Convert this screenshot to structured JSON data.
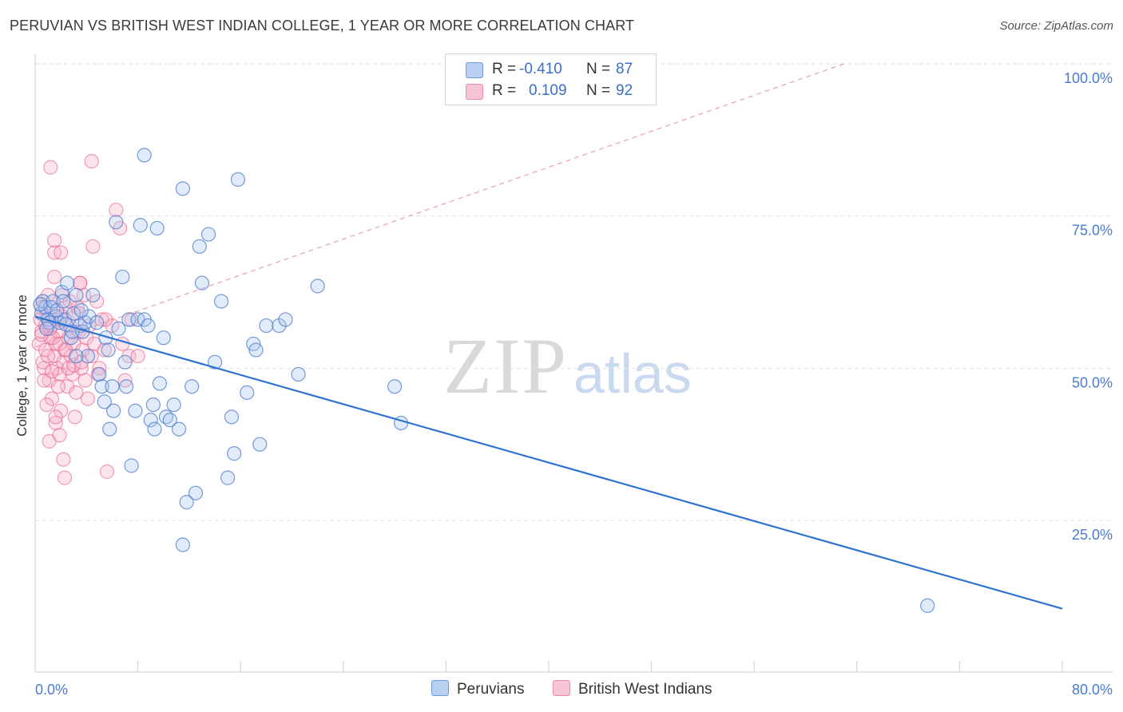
{
  "title": "PERUVIAN VS BRITISH WEST INDIAN COLLEGE, 1 YEAR OR MORE CORRELATION CHART",
  "source": "Source: ZipAtlas.com",
  "watermark": {
    "zip": "ZIP",
    "atlas": "atlas"
  },
  "colors": {
    "blue": "#4a7bd0",
    "blue_fill": "#a9c6ef",
    "pink": "#e8608a",
    "pink_fill": "#f5b3c8",
    "trend_blue": "#2f73cf",
    "trend_pink": "#e8a0b6"
  },
  "legend": {
    "rows": [
      {
        "r_label": "R =",
        "r_value": "-0.410",
        "n_label": "N =",
        "n_value": "87"
      },
      {
        "r_label": "R =",
        "r_value": "0.109",
        "n_label": "N =",
        "n_value": "92"
      }
    ]
  },
  "bottom_legend": {
    "series1": "Peruvians",
    "series2": "British West Indians"
  },
  "chart_data": {
    "type": "scatter",
    "title": "PERUVIAN VS BRITISH WEST INDIAN COLLEGE, 1 YEAR OR MORE CORRELATION CHART",
    "xlabel": "",
    "ylabel": "College, 1 year or more",
    "xlim": [
      0,
      80
    ],
    "ylim": [
      0,
      103
    ],
    "x_tick_labels": [
      "0.0%",
      "80.0%"
    ],
    "y_ticks": [
      25,
      50,
      75,
      100
    ],
    "y_tick_labels": [
      "25.0%",
      "50.0%",
      "75.0%",
      "100.0%"
    ],
    "grid": true,
    "legend_position": "top-center",
    "series": [
      {
        "name": "Peruvians",
        "R": -0.41,
        "N": 87,
        "trend": {
          "x": [
            0,
            80
          ],
          "y": [
            58.5,
            10.5
          ]
        },
        "points": [
          [
            0.5,
            59
          ],
          [
            0.6,
            61
          ],
          [
            0.8,
            60
          ],
          [
            1,
            58
          ],
          [
            1.2,
            60
          ],
          [
            1.4,
            61
          ],
          [
            1.6,
            58.5
          ],
          [
            1.9,
            57.5
          ],
          [
            2.1,
            62.5
          ],
          [
            2.3,
            58
          ],
          [
            2.5,
            64
          ],
          [
            2.8,
            55
          ],
          [
            3,
            59
          ],
          [
            3.2,
            62
          ],
          [
            3.5,
            57
          ],
          [
            3.7,
            56
          ],
          [
            3.9,
            57.5
          ],
          [
            4.2,
            58.5
          ],
          [
            4.5,
            62
          ],
          [
            4.8,
            57.5
          ],
          [
            5,
            49
          ],
          [
            5.2,
            47
          ],
          [
            5.5,
            55
          ],
          [
            5.7,
            53
          ],
          [
            6,
            47
          ],
          [
            6.3,
            74
          ],
          [
            6.5,
            56.5
          ],
          [
            6.8,
            65
          ],
          [
            7,
            51
          ],
          [
            7.3,
            58
          ],
          [
            7.5,
            34
          ],
          [
            7.8,
            43
          ],
          [
            8,
            58
          ],
          [
            8.2,
            73.5
          ],
          [
            8.5,
            58
          ],
          [
            8.8,
            57
          ],
          [
            9,
            41.5
          ],
          [
            9.2,
            44
          ],
          [
            9.5,
            73
          ],
          [
            9.7,
            47.5
          ],
          [
            10,
            55
          ],
          [
            10.2,
            42
          ],
          [
            10.5,
            41.5
          ],
          [
            10.8,
            44
          ],
          [
            11.2,
            40
          ],
          [
            11.5,
            79.5
          ],
          [
            11.8,
            28
          ],
          [
            12.2,
            47
          ],
          [
            12.5,
            29.5
          ],
          [
            12.8,
            70
          ],
          [
            13,
            64
          ],
          [
            13.5,
            72
          ],
          [
            14,
            51
          ],
          [
            14.5,
            61
          ],
          [
            15,
            32
          ],
          [
            15.3,
            42
          ],
          [
            15.5,
            36
          ],
          [
            15.8,
            81
          ],
          [
            16.5,
            46
          ],
          [
            17,
            54
          ],
          [
            17.2,
            53
          ],
          [
            17.5,
            37.5
          ],
          [
            18,
            57
          ],
          [
            19,
            57
          ],
          [
            19.5,
            58
          ],
          [
            20.5,
            49
          ],
          [
            8.5,
            85
          ],
          [
            11.5,
            21
          ],
          [
            22,
            63.5
          ],
          [
            28,
            47
          ],
          [
            28.5,
            41
          ],
          [
            69.5,
            11
          ],
          [
            2.4,
            57.2
          ],
          [
            3.6,
            59.5
          ],
          [
            1.1,
            57.5
          ],
          [
            0.9,
            56.5
          ],
          [
            4.1,
            52
          ],
          [
            6.1,
            43
          ],
          [
            5.8,
            40
          ],
          [
            7.1,
            47
          ],
          [
            9.3,
            40
          ],
          [
            3.2,
            52
          ],
          [
            2.9,
            56
          ],
          [
            0.4,
            60.5
          ],
          [
            1.7,
            59.5
          ],
          [
            2.2,
            61
          ],
          [
            5.4,
            44.5
          ]
        ]
      },
      {
        "name": "British West Indians",
        "R": 0.109,
        "N": 92,
        "trend": {
          "x": [
            0,
            63
          ],
          "y": [
            53.5,
            100
          ]
        },
        "points": [
          [
            0.3,
            54
          ],
          [
            0.4,
            58
          ],
          [
            0.5,
            56
          ],
          [
            0.6,
            61
          ],
          [
            0.7,
            50
          ],
          [
            0.8,
            53
          ],
          [
            0.9,
            59
          ],
          [
            1,
            62
          ],
          [
            1.1,
            48
          ],
          [
            1.2,
            55
          ],
          [
            1.3,
            57
          ],
          [
            1.4,
            60
          ],
          [
            1.5,
            52
          ],
          [
            1.6,
            54
          ],
          [
            1.7,
            50
          ],
          [
            1.8,
            56
          ],
          [
            1.9,
            49
          ],
          [
            2,
            58
          ],
          [
            2.1,
            62
          ],
          [
            2.2,
            51
          ],
          [
            2.3,
            53
          ],
          [
            2.4,
            60
          ],
          [
            2.5,
            47
          ],
          [
            2.6,
            55
          ],
          [
            2.7,
            57
          ],
          [
            2.8,
            52
          ],
          [
            2.9,
            49
          ],
          [
            3,
            54
          ],
          [
            3.1,
            42
          ],
          [
            3.2,
            46
          ],
          [
            3.3,
            60
          ],
          [
            3.4,
            56
          ],
          [
            3.5,
            64
          ],
          [
            3.6,
            50
          ],
          [
            3.7,
            53
          ],
          [
            3.8,
            62
          ],
          [
            3.9,
            48
          ],
          [
            4,
            55
          ],
          [
            4.2,
            57
          ],
          [
            4.4,
            52
          ],
          [
            4.6,
            54
          ],
          [
            4.8,
            61
          ],
          [
            5,
            50
          ],
          [
            5.2,
            58
          ],
          [
            5.4,
            53
          ],
          [
            5.6,
            33
          ],
          [
            6,
            57
          ],
          [
            6.3,
            76
          ],
          [
            6.6,
            73
          ],
          [
            7,
            48
          ],
          [
            7.3,
            52
          ],
          [
            1.2,
            83
          ],
          [
            4.4,
            84
          ],
          [
            1.5,
            71
          ],
          [
            1.5,
            69
          ],
          [
            2,
            69
          ],
          [
            3.5,
            64
          ],
          [
            1.5,
            65
          ],
          [
            1.3,
            45
          ],
          [
            1.6,
            41
          ],
          [
            2,
            43
          ],
          [
            1.1,
            38
          ],
          [
            1.9,
            39
          ],
          [
            2.2,
            35
          ],
          [
            2.3,
            32
          ],
          [
            4.5,
            70
          ],
          [
            7.5,
            58
          ],
          [
            8,
            52
          ],
          [
            6.8,
            54
          ],
          [
            5.5,
            58
          ],
          [
            0.5,
            60
          ],
          [
            0.8,
            57
          ],
          [
            1.4,
            55
          ],
          [
            1.9,
            54
          ],
          [
            2.4,
            53
          ],
          [
            0.6,
            51
          ],
          [
            1.0,
            52
          ],
          [
            0.7,
            48
          ],
          [
            1.3,
            49.5
          ],
          [
            1.8,
            47
          ],
          [
            2.6,
            50
          ],
          [
            3.4,
            59
          ],
          [
            4.1,
            45
          ],
          [
            0.9,
            44
          ],
          [
            1.6,
            42
          ],
          [
            2.1,
            58.5
          ],
          [
            2.7,
            61
          ],
          [
            3.0,
            50.5
          ],
          [
            0.5,
            55.5
          ],
          [
            1.15,
            56.5
          ],
          [
            3.6,
            51
          ],
          [
            4.9,
            49
          ]
        ]
      }
    ]
  }
}
